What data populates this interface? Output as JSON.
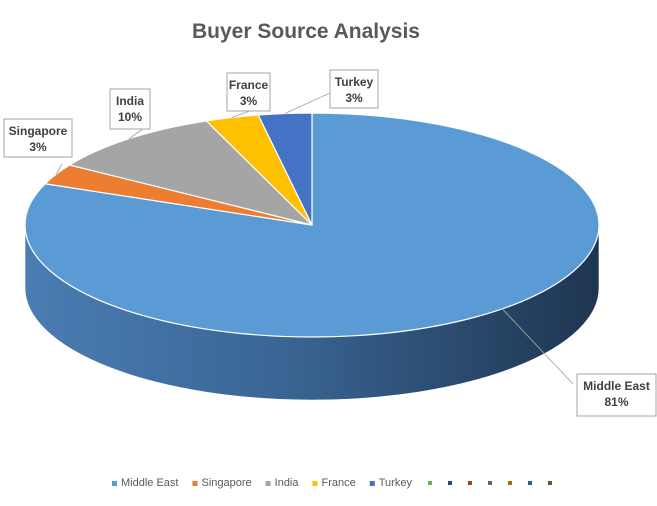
{
  "chart_data": {
    "type": "pie",
    "title": "Buyer Source Analysis",
    "three_d": true,
    "slices": [
      {
        "name": "Middle East",
        "value": 81,
        "label": "81%",
        "color": "#5B9BD5"
      },
      {
        "name": "Singapore",
        "value": 3,
        "label": "3%",
        "color": "#ED7D31"
      },
      {
        "name": "India",
        "value": 10,
        "label": "10%",
        "color": "#A5A5A5"
      },
      {
        "name": "France",
        "value": 3,
        "label": "3%",
        "color": "#FFC000"
      },
      {
        "name": "Turkey",
        "value": 3,
        "label": "3%",
        "color": "#4472C4"
      }
    ],
    "legend": {
      "placement": "bottom",
      "entries": [
        "Middle East",
        "Singapore",
        "India",
        "France",
        "Turkey"
      ],
      "extra_marker_colors": [
        "#70AD47",
        "#264478",
        "#9E480E",
        "#636363",
        "#997300",
        "#255E91",
        "#43682B"
      ]
    }
  }
}
